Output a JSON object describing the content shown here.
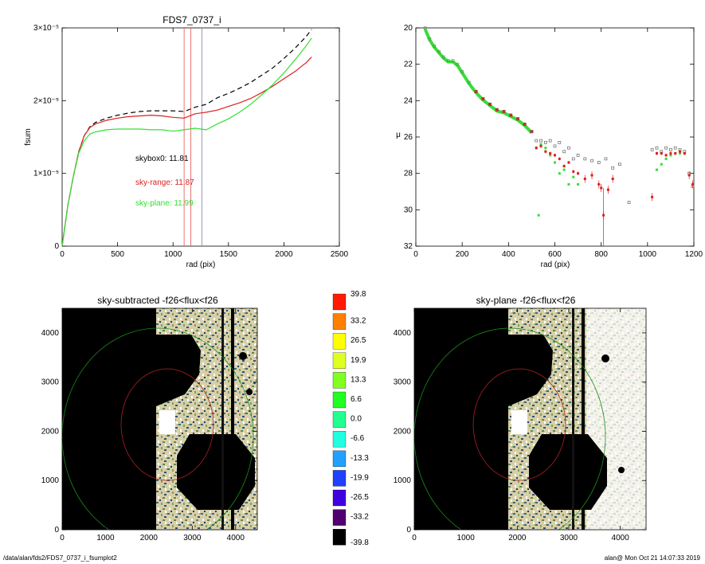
{
  "footer": {
    "path": "/data/alan/fds2/FDS7_0737_i_fsumplot2",
    "stamp": "alan@  Mon Oct 21 14:07:33 2019"
  },
  "colors": {
    "total": "#000000",
    "range": "#dd2020",
    "plane": "#33e033",
    "box": "#888888",
    "vlines_red": "#e05050",
    "vlines_blue": "#8080b0"
  },
  "chart_data": [
    {
      "id": "fsum",
      "type": "line",
      "title": "FDS7_0737_i",
      "xlabel": "rad (pix)",
      "ylabel": "fsum",
      "xlim": [
        0,
        2500
      ],
      "ylim": [
        0,
        3e-05
      ],
      "xticks": [
        "0",
        "500",
        "1000",
        "1500",
        "2000",
        "2500"
      ],
      "xtick_values": [
        0,
        500,
        1000,
        1500,
        2000,
        2500
      ],
      "yticks": [
        "0",
        "1×10⁻⁵",
        "2×10⁻⁵",
        "3×10⁻⁵"
      ],
      "ytick_values": [
        0,
        1e-05,
        2e-05,
        3e-05
      ],
      "vlines_red": [
        1100,
        1160
      ],
      "vlines_blue": [
        1260
      ],
      "series": [
        {
          "key": "total",
          "dashed": true,
          "x": [
            0,
            50,
            100,
            150,
            200,
            250,
            300,
            400,
            500,
            600,
            700,
            800,
            900,
            1000,
            1100,
            1200,
            1300,
            1400,
            1500,
            1600,
            1700,
            1800,
            1900,
            2000,
            2100,
            2200,
            2250
          ],
          "y": [
            0,
            0.55,
            0.95,
            1.3,
            1.52,
            1.64,
            1.7,
            1.76,
            1.8,
            1.83,
            1.85,
            1.86,
            1.86,
            1.86,
            1.85,
            1.91,
            1.95,
            2.04,
            2.1,
            2.17,
            2.25,
            2.35,
            2.45,
            2.58,
            2.72,
            2.88,
            2.98
          ]
        },
        {
          "key": "range",
          "x": [
            0,
            50,
            100,
            150,
            200,
            250,
            300,
            400,
            500,
            600,
            700,
            800,
            900,
            1000,
            1100,
            1200,
            1300,
            1400,
            1500,
            1600,
            1700,
            1800,
            1900,
            2000,
            2100,
            2200,
            2250
          ],
          "y": [
            0,
            0.55,
            0.95,
            1.3,
            1.52,
            1.63,
            1.68,
            1.73,
            1.76,
            1.78,
            1.79,
            1.8,
            1.79,
            1.77,
            1.76,
            1.82,
            1.84,
            1.87,
            1.92,
            1.97,
            2.03,
            2.11,
            2.2,
            2.3,
            2.4,
            2.52,
            2.6
          ]
        },
        {
          "key": "plane",
          "x": [
            0,
            50,
            100,
            150,
            200,
            250,
            300,
            400,
            500,
            600,
            700,
            800,
            900,
            1000,
            1100,
            1200,
            1300,
            1400,
            1500,
            1600,
            1700,
            1800,
            1900,
            2000,
            2100,
            2200,
            2250
          ],
          "y": [
            0,
            0.55,
            0.95,
            1.28,
            1.45,
            1.54,
            1.57,
            1.6,
            1.61,
            1.61,
            1.61,
            1.6,
            1.6,
            1.58,
            1.6,
            1.62,
            1.6,
            1.68,
            1.75,
            1.84,
            1.95,
            2.08,
            2.22,
            2.38,
            2.56,
            2.75,
            2.86
          ]
        }
      ],
      "y_scale_note": "series y values in units of 1e-5",
      "annotations": [
        {
          "key": "total",
          "text": "skybox0: 11.81"
        },
        {
          "key": "range",
          "text": "sky-range: 11.87"
        },
        {
          "key": "plane",
          "text": "sky-plane: 11.99"
        }
      ]
    },
    {
      "id": "mu",
      "type": "scatter",
      "title": "",
      "xlabel": "rad (pix)",
      "ylabel": "μ",
      "xlim": [
        0,
        1200
      ],
      "ylim": [
        32,
        20
      ],
      "xticks": [
        "0",
        "200",
        "400",
        "600",
        "800",
        "1000",
        "1200"
      ],
      "xtick_values": [
        0,
        200,
        400,
        600,
        800,
        1000,
        1200
      ],
      "yticks": [
        "20",
        "22",
        "24",
        "26",
        "28",
        "30",
        "32"
      ],
      "ytick_values": [
        20,
        22,
        24,
        26,
        28,
        30,
        32
      ],
      "profile": {
        "x": [
          40,
          60,
          80,
          100,
          120,
          140,
          160,
          180,
          200,
          230,
          260,
          290,
          320,
          350,
          380,
          410,
          440,
          470,
          500
        ],
        "y": [
          20.0,
          20.6,
          21.0,
          21.3,
          21.6,
          21.8,
          21.8,
          22.0,
          22.4,
          23.0,
          23.5,
          23.9,
          24.2,
          24.5,
          24.6,
          24.8,
          25.0,
          25.3,
          25.7
        ]
      },
      "box_points": {
        "x": [
          520,
          540,
          560,
          580,
          600,
          620,
          640,
          660,
          680,
          700,
          730,
          760,
          790,
          820,
          850,
          880,
          920,
          1020,
          1040,
          1060,
          1080,
          1100,
          1120,
          1140,
          1160,
          1180,
          1195
        ],
        "y": [
          26.2,
          26.2,
          26.3,
          26.2,
          26.5,
          26.3,
          26.8,
          26.6,
          27.2,
          27.0,
          27.2,
          27.3,
          27.4,
          27.2,
          27.7,
          27.5,
          29.6,
          26.7,
          26.6,
          26.8,
          26.6,
          26.7,
          26.6,
          26.7,
          26.8,
          28.0,
          28.7
        ]
      },
      "range_points": {
        "x": [
          520,
          540,
          560,
          580,
          600,
          620,
          640,
          660,
          680,
          700,
          730,
          760,
          790,
          800,
          810,
          830,
          850,
          1020,
          1040,
          1060,
          1080,
          1100,
          1120,
          1140,
          1160,
          1180,
          1195
        ],
        "y": [
          26.6,
          26.5,
          26.8,
          26.9,
          27.0,
          27.2,
          27.6,
          27.4,
          27.9,
          28.0,
          28.3,
          28.1,
          28.6,
          28.8,
          30.3,
          28.9,
          28.3,
          29.3,
          26.9,
          26.9,
          27.0,
          26.9,
          26.9,
          26.8,
          26.9,
          28.1,
          28.6
        ]
      },
      "plane_points": {
        "x": [
          520,
          540,
          560,
          580,
          600,
          620,
          640,
          660,
          680,
          700,
          530,
          1040,
          1060,
          1080,
          1100,
          1120,
          1140,
          1160
        ],
        "y": [
          26.6,
          26.4,
          26.6,
          27.0,
          27.4,
          28.0,
          27.8,
          28.6,
          28.2,
          28.6,
          30.3,
          27.8,
          27.5,
          27.2,
          27.0,
          26.9,
          26.9,
          26.9
        ]
      }
    },
    {
      "id": "img1",
      "type": "heatmap",
      "title": "sky-subtracted -f26<flux<f26",
      "xlim": [
        0,
        4500
      ],
      "ylim": [
        0,
        4500
      ],
      "xticks": [
        "0",
        "1000",
        "2000",
        "3000",
        "4000"
      ],
      "xtick_values": [
        0,
        1000,
        2000,
        3000,
        4000
      ],
      "yticks": [
        "0",
        "1000",
        "2000",
        "3000",
        "4000"
      ],
      "ytick_values": [
        0,
        1000,
        2000,
        3000,
        4000
      ]
    },
    {
      "id": "img2",
      "type": "heatmap",
      "title": "sky-plane -f26<flux<f26",
      "xlim": [
        0,
        4500
      ],
      "ylim": [
        0,
        4500
      ],
      "xticks": [
        "0",
        "1000",
        "2000",
        "3000",
        "4000"
      ],
      "xtick_values": [
        0,
        1000,
        2000,
        3000,
        4000
      ],
      "yticks": [
        "0",
        "1000",
        "2000",
        "3000",
        "4000"
      ],
      "ytick_values": [
        0,
        1000,
        2000,
        3000,
        4000
      ]
    },
    {
      "id": "colorbar",
      "type": "table",
      "labels": [
        "39.8",
        "33.2",
        "26.5",
        "19.9",
        "13.3",
        "6.6",
        "0.0",
        "-6.6",
        "-13.3",
        "-19.9",
        "-26.5",
        "-33.2",
        "-39.8"
      ],
      "colors": [
        "#ff1a00",
        "#ff8000",
        "#ffff00",
        "#dfff20",
        "#80ff20",
        "#20ff20",
        "#20ff90",
        "#20ffe0",
        "#20a0ff",
        "#2040ff",
        "#4000e0",
        "#500070",
        "#000000"
      ]
    }
  ]
}
